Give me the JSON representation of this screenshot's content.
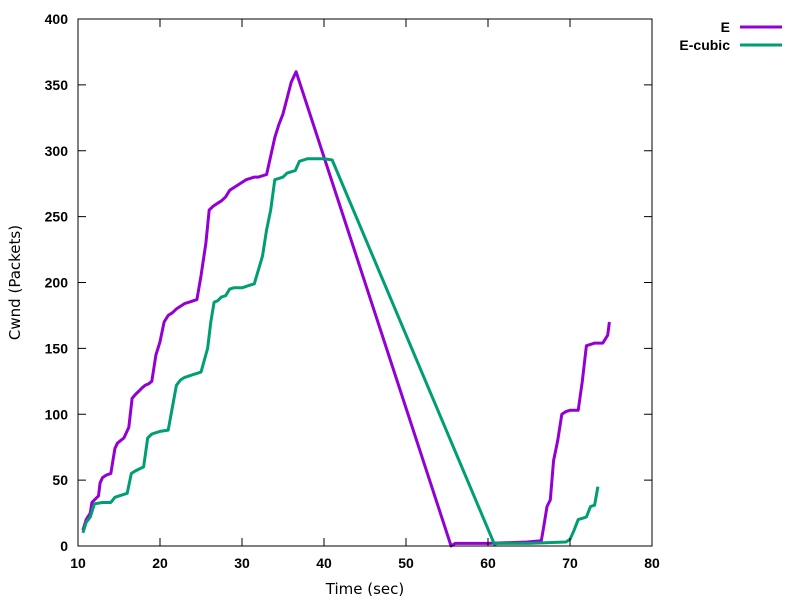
{
  "chart_data": {
    "type": "line",
    "title": "",
    "xlabel": "Time (sec)",
    "ylabel": "Cwnd (Packets)",
    "xlim": [
      10,
      80
    ],
    "ylim": [
      0,
      400
    ],
    "xticks": [
      10,
      20,
      30,
      40,
      50,
      60,
      70,
      80
    ],
    "yticks": [
      0,
      50,
      100,
      150,
      200,
      250,
      300,
      350,
      400
    ],
    "grid": false,
    "legend_position": "top-right",
    "series": [
      {
        "name": "E",
        "color": "#9400d3",
        "x": [
          10.6,
          11.0,
          11.5,
          11.7,
          12.0,
          12.5,
          12.7,
          13.0,
          13.5,
          14.0,
          14.5,
          14.8,
          15.2,
          15.6,
          16.2,
          16.6,
          17.0,
          17.5,
          17.8,
          18.2,
          18.6,
          19.0,
          19.5,
          20.0,
          20.5,
          21.0,
          21.5,
          22.0,
          22.5,
          23.0,
          23.5,
          24.0,
          24.5,
          25.0,
          25.6,
          26.0,
          26.5,
          27.0,
          27.5,
          28.0,
          28.5,
          29.0,
          29.5,
          30.0,
          30.5,
          31.0,
          31.5,
          32.0,
          33.0,
          34.0,
          34.5,
          35.0,
          35.5,
          36.0,
          36.6,
          55.5,
          56.0,
          60.0,
          64.8,
          66.5,
          66.8,
          67.2,
          67.6,
          68.0,
          68.5,
          69.0,
          69.5,
          70.0,
          71.0,
          71.5,
          72.0,
          72.5,
          73.0,
          74.0,
          74.6,
          74.8
        ],
        "y": [
          12,
          20,
          25,
          33,
          35,
          38,
          48,
          52,
          54,
          55,
          74,
          78,
          80,
          82,
          90,
          112,
          115,
          118,
          120,
          122,
          123,
          125,
          145,
          155,
          170,
          175,
          177,
          180,
          182,
          184,
          185,
          186,
          187,
          205,
          230,
          255,
          258,
          260,
          262,
          265,
          270,
          272,
          274,
          276,
          278,
          279,
          280,
          280,
          282,
          310,
          320,
          328,
          340,
          352,
          360,
          0,
          2,
          2,
          3,
          4,
          15,
          30,
          35,
          65,
          80,
          100,
          102,
          103,
          103,
          125,
          152,
          153,
          154,
          154,
          160,
          170
        ]
      },
      {
        "name": "E-cubic",
        "color": "#009e73",
        "x": [
          10.6,
          11.0,
          11.5,
          12.0,
          13.0,
          14.0,
          14.5,
          15.0,
          16.0,
          16.5,
          17.0,
          18.0,
          18.5,
          19.0,
          20.0,
          21.0,
          21.5,
          22.0,
          22.5,
          23.0,
          24.0,
          25.0,
          25.8,
          26.2,
          26.6,
          27.0,
          27.5,
          28.0,
          28.5,
          29.0,
          30.0,
          31.0,
          31.5,
          32.5,
          33.0,
          33.5,
          34.0,
          34.5,
          35.0,
          35.5,
          36.0,
          36.5,
          37.0,
          37.5,
          38.0,
          40.0,
          41.0,
          60.8,
          61.0,
          65.0,
          69.5,
          70.0,
          70.5,
          71.0,
          71.5,
          72.0,
          72.5,
          73.0,
          73.4
        ],
        "y": [
          10,
          18,
          22,
          32,
          33,
          33,
          37,
          38,
          40,
          55,
          57,
          60,
          82,
          85,
          87,
          88,
          105,
          122,
          126,
          128,
          130,
          132,
          150,
          170,
          185,
          186,
          189,
          190,
          195,
          196,
          196,
          198,
          199,
          220,
          240,
          255,
          278,
          279,
          280,
          283,
          284,
          285,
          292,
          293,
          294,
          294,
          293,
          1,
          2,
          2,
          3,
          5,
          12,
          20,
          21,
          22,
          30,
          31,
          45
        ]
      }
    ]
  }
}
